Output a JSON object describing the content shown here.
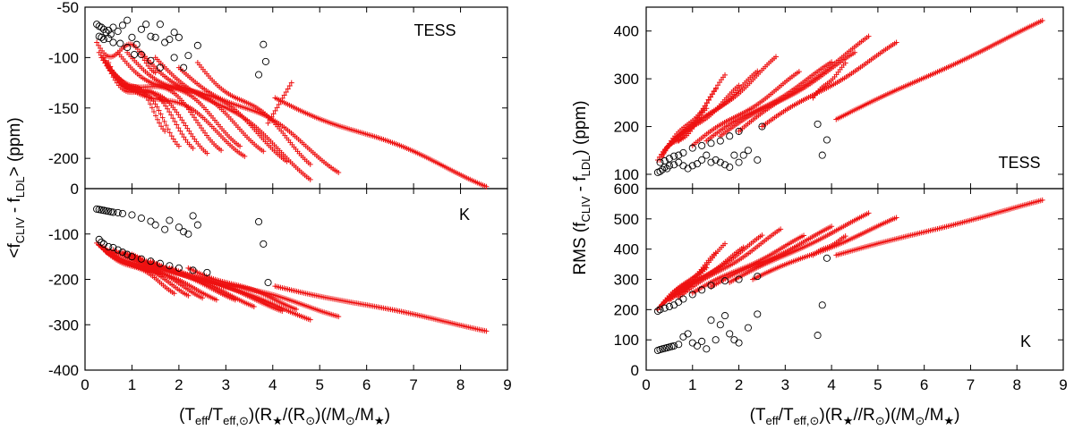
{
  "chart_data": [
    {
      "id": "mean_tess",
      "type": "scatter",
      "panel_label": "TESS",
      "ylabel_parts": [
        "<f",
        "CLIV",
        " - f",
        "LDL",
        "> (ppm)"
      ],
      "xlim": [
        0,
        9
      ],
      "ylim": [
        -230,
        -50
      ],
      "xticks": [],
      "yticks": [
        -200,
        -150,
        -100,
        -50
      ],
      "circles": {
        "x": [
          0.25,
          0.3,
          0.35,
          0.4,
          0.45,
          0.5,
          0.55,
          0.6,
          0.7,
          0.8,
          0.9,
          1.0,
          1.1,
          1.2,
          1.3,
          1.4,
          1.5,
          1.6,
          1.7,
          1.8,
          1.9,
          2.0,
          2.2,
          2.4,
          3.7,
          3.8,
          3.85,
          0.3,
          0.35,
          0.4,
          0.5,
          0.6,
          0.75,
          0.9,
          1.05,
          1.2,
          1.4,
          1.6,
          1.9,
          2.1
        ],
        "y": [
          -67,
          -69,
          -70,
          -72,
          -75,
          -73,
          -77,
          -70,
          -74,
          -68,
          -63,
          -80,
          -87,
          -72,
          -67,
          -79,
          -80,
          -67,
          -85,
          -82,
          -75,
          -80,
          -98,
          -88,
          -117,
          -87,
          -104,
          -79,
          -80,
          -82,
          -81,
          -85,
          -86,
          -90,
          -97,
          -97,
          -103,
          -110,
          -100,
          -110
        ]
      },
      "cross_curves": [
        {
          "x0": 0.25,
          "x1": 1.5,
          "y0": -85,
          "y1": -105,
          "w": -10
        },
        {
          "x0": 0.3,
          "x1": 2.9,
          "y0": -95,
          "y1": -180,
          "w": -12
        },
        {
          "x0": 0.35,
          "x1": 2.6,
          "y0": -100,
          "y1": -185,
          "w": -10
        },
        {
          "x0": 0.4,
          "x1": 2.3,
          "y0": -100,
          "y1": -180,
          "w": -10
        },
        {
          "x0": 0.45,
          "x1": 2.0,
          "y0": -105,
          "y1": -178,
          "w": -10
        },
        {
          "x0": 0.5,
          "x1": 1.7,
          "y0": -105,
          "y1": -165,
          "w": -8
        },
        {
          "x0": 0.5,
          "x1": 3.4,
          "y0": -110,
          "y1": -190,
          "w": -8
        },
        {
          "x0": 0.7,
          "x1": 3.3,
          "y0": -95,
          "y1": -180,
          "w": -8
        },
        {
          "x0": 0.9,
          "x1": 3.8,
          "y0": -95,
          "y1": -185,
          "w": -8
        },
        {
          "x0": 1.2,
          "x1": 4.3,
          "y0": -95,
          "y1": -195,
          "w": -8
        },
        {
          "x0": 1.5,
          "x1": 4.8,
          "y0": -100,
          "y1": -215,
          "w": -6
        },
        {
          "x0": 2.0,
          "x1": 5.4,
          "y0": -110,
          "y1": -208,
          "w": -6
        },
        {
          "x0": 2.4,
          "x1": 4.8,
          "y0": -105,
          "y1": -200,
          "w": -6
        },
        {
          "x0": 4.05,
          "x1": 8.55,
          "y0": -140,
          "y1": -225,
          "w": -3
        },
        {
          "x0": 3.9,
          "x1": 4.4,
          "y0": -165,
          "y1": -125,
          "w": 0
        }
      ]
    },
    {
      "id": "mean_k",
      "type": "scatter",
      "panel_label": "K",
      "xlabel_parts": [
        "(T",
        "eff",
        "/T",
        "eff,⊙",
        ")(R",
        "★",
        "/(R",
        "⊙",
        ")(/M",
        "⊙",
        "/M",
        "★",
        ")"
      ],
      "xlim": [
        0,
        9
      ],
      "ylim": [
        -400,
        0
      ],
      "xticks": [
        0,
        1,
        2,
        3,
        4,
        5,
        6,
        7,
        8,
        9
      ],
      "yticks": [
        -400,
        -300,
        -200,
        -100,
        0
      ],
      "circles": {
        "x": [
          0.25,
          0.3,
          0.35,
          0.4,
          0.45,
          0.5,
          0.55,
          0.6,
          0.7,
          0.8,
          1.0,
          1.2,
          1.4,
          1.5,
          1.7,
          1.8,
          2.0,
          2.1,
          2.2,
          2.3,
          2.4,
          3.7,
          3.8,
          3.9,
          0.3,
          0.35,
          0.4,
          0.5,
          0.6,
          0.7,
          0.8,
          0.9,
          1.0,
          1.2,
          1.4,
          1.6,
          1.8,
          2.0,
          2.3,
          2.6
        ],
        "y": [
          -45,
          -46,
          -47,
          -48,
          -49,
          -50,
          -51,
          -52,
          -53,
          -55,
          -58,
          -65,
          -72,
          -80,
          -90,
          -70,
          -85,
          -95,
          -100,
          -60,
          -80,
          -73,
          -122,
          -207,
          -112,
          -118,
          -122,
          -128,
          -130,
          -135,
          -140,
          -145,
          -150,
          -155,
          -160,
          -165,
          -170,
          -175,
          -180,
          -185
        ]
      },
      "cross_curves": [
        {
          "x0": 0.25,
          "x1": 1.6,
          "y0": -120,
          "y1": -180,
          "w": -6
        },
        {
          "x0": 0.3,
          "x1": 2.5,
          "y0": -125,
          "y1": -235,
          "w": -6
        },
        {
          "x0": 0.35,
          "x1": 2.2,
          "y0": -130,
          "y1": -230,
          "w": -6
        },
        {
          "x0": 0.4,
          "x1": 1.9,
          "y0": -135,
          "y1": -225,
          "w": -6
        },
        {
          "x0": 0.45,
          "x1": 2.8,
          "y0": -140,
          "y1": -240,
          "w": -5
        },
        {
          "x0": 0.6,
          "x1": 3.2,
          "y0": -135,
          "y1": -240,
          "w": -5
        },
        {
          "x0": 0.8,
          "x1": 3.6,
          "y0": -140,
          "y1": -255,
          "w": -5
        },
        {
          "x0": 1.0,
          "x1": 4.2,
          "y0": -145,
          "y1": -265,
          "w": -5
        },
        {
          "x0": 1.4,
          "x1": 4.8,
          "y0": -160,
          "y1": -285,
          "w": -4
        },
        {
          "x0": 1.8,
          "x1": 5.4,
          "y0": -175,
          "y1": -278,
          "w": -4
        },
        {
          "x0": 2.2,
          "x1": 4.5,
          "y0": -175,
          "y1": -262,
          "w": -4
        },
        {
          "x0": 4.05,
          "x1": 8.55,
          "y0": -215,
          "y1": -312,
          "w": -2
        }
      ]
    },
    {
      "id": "rms_tess",
      "type": "scatter",
      "panel_label": "TESS",
      "ylabel_parts": [
        "RMS (f",
        "CLIV",
        " - f",
        "LDL",
        ") (ppm)"
      ],
      "xlim": [
        0,
        9
      ],
      "ylim": [
        70,
        450
      ],
      "xticks": [],
      "yticks": [
        100,
        200,
        300,
        400
      ],
      "circles": {
        "x": [
          0.25,
          0.3,
          0.35,
          0.4,
          0.45,
          0.5,
          0.6,
          0.7,
          0.8,
          0.9,
          1.0,
          1.1,
          1.2,
          1.3,
          1.4,
          1.5,
          1.6,
          1.7,
          1.8,
          1.9,
          2.0,
          2.1,
          2.2,
          2.4,
          3.7,
          3.8,
          3.9,
          0.3,
          0.4,
          0.5,
          0.6,
          0.7,
          0.8,
          1.0,
          1.2,
          1.4,
          1.6,
          1.8,
          2.0,
          2.5
        ],
        "y": [
          104,
          106,
          110,
          115,
          112,
          118,
          120,
          125,
          118,
          112,
          118,
          122,
          130,
          140,
          125,
          130,
          125,
          120,
          115,
          140,
          125,
          140,
          150,
          130,
          205,
          140,
          172,
          125,
          128,
          133,
          138,
          140,
          145,
          155,
          160,
          165,
          170,
          180,
          190,
          200
        ]
      },
      "cross_curves": [
        {
          "x0": 0.25,
          "x1": 1.3,
          "y0": 130,
          "y1": 230,
          "w": 8
        },
        {
          "x0": 0.3,
          "x1": 1.5,
          "y0": 130,
          "y1": 270,
          "w": 8
        },
        {
          "x0": 0.35,
          "x1": 1.7,
          "y0": 140,
          "y1": 300,
          "w": 8
        },
        {
          "x0": 0.4,
          "x1": 2.0,
          "y0": 150,
          "y1": 280,
          "w": 6
        },
        {
          "x0": 0.5,
          "x1": 2.4,
          "y0": 160,
          "y1": 310,
          "w": 6
        },
        {
          "x0": 0.7,
          "x1": 2.8,
          "y0": 170,
          "y1": 340,
          "w": 6
        },
        {
          "x0": 1.0,
          "x1": 3.3,
          "y0": 160,
          "y1": 310,
          "w": 5
        },
        {
          "x0": 1.3,
          "x1": 4.0,
          "y0": 170,
          "y1": 330,
          "w": 5
        },
        {
          "x0": 1.6,
          "x1": 4.5,
          "y0": 180,
          "y1": 350,
          "w": 5
        },
        {
          "x0": 2.0,
          "x1": 4.8,
          "y0": 190,
          "y1": 385,
          "w": 4
        },
        {
          "x0": 2.5,
          "x1": 5.4,
          "y0": 200,
          "y1": 372,
          "w": 4
        },
        {
          "x0": 4.1,
          "x1": 8.55,
          "y0": 215,
          "y1": 420,
          "w": 2
        },
        {
          "x0": 3.6,
          "x1": 4.3,
          "y0": 260,
          "y1": 330,
          "w": 3
        }
      ]
    },
    {
      "id": "rms_k",
      "type": "scatter",
      "panel_label": "K",
      "xlabel_parts": [
        "(T",
        "eff",
        "/T",
        "eff,⊙",
        ")(R",
        "★",
        "//R",
        "⊙",
        ")(/M",
        "⊙",
        "/M",
        "★",
        ")"
      ],
      "xlim": [
        0,
        9
      ],
      "ylim": [
        0,
        600
      ],
      "xticks": [
        0,
        1,
        2,
        3,
        4,
        5,
        6,
        7,
        8,
        9
      ],
      "yticks": [
        0,
        100,
        200,
        300,
        400,
        500,
        600
      ],
      "circles": {
        "x": [
          0.25,
          0.3,
          0.35,
          0.4,
          0.45,
          0.5,
          0.55,
          0.6,
          0.7,
          0.8,
          0.9,
          1.0,
          1.1,
          1.2,
          1.3,
          1.4,
          1.5,
          1.6,
          1.7,
          1.8,
          2.0,
          2.2,
          2.4,
          3.7,
          3.8,
          3.9,
          0.25,
          0.3,
          0.4,
          0.5,
          0.6,
          0.7,
          0.8,
          1.0,
          1.2,
          1.4,
          1.7,
          2.0,
          2.4,
          1.9
        ],
        "y": [
          65,
          68,
          70,
          72,
          74,
          76,
          78,
          80,
          85,
          110,
          120,
          90,
          80,
          95,
          70,
          165,
          100,
          150,
          180,
          120,
          90,
          140,
          185,
          115,
          215,
          370,
          195,
          200,
          205,
          210,
          215,
          225,
          235,
          250,
          265,
          280,
          295,
          300,
          310,
          100
        ]
      },
      "cross_curves": [
        {
          "x0": 0.25,
          "x1": 1.3,
          "y0": 200,
          "y1": 330,
          "w": 8
        },
        {
          "x0": 0.3,
          "x1": 1.5,
          "y0": 210,
          "y1": 380,
          "w": 8
        },
        {
          "x0": 0.35,
          "x1": 1.7,
          "y0": 215,
          "y1": 410,
          "w": 8
        },
        {
          "x0": 0.4,
          "x1": 2.1,
          "y0": 225,
          "y1": 400,
          "w": 6
        },
        {
          "x0": 0.5,
          "x1": 2.5,
          "y0": 230,
          "y1": 440,
          "w": 6
        },
        {
          "x0": 0.7,
          "x1": 2.9,
          "y0": 240,
          "y1": 460,
          "w": 6
        },
        {
          "x0": 1.0,
          "x1": 3.4,
          "y0": 255,
          "y1": 440,
          "w": 5
        },
        {
          "x0": 1.4,
          "x1": 4.0,
          "y0": 275,
          "y1": 470,
          "w": 5
        },
        {
          "x0": 1.8,
          "x1": 4.8,
          "y0": 290,
          "y1": 515,
          "w": 4
        },
        {
          "x0": 2.3,
          "x1": 5.4,
          "y0": 300,
          "y1": 500,
          "w": 4
        },
        {
          "x0": 4.1,
          "x1": 8.55,
          "y0": 380,
          "y1": 560,
          "w": 2
        },
        {
          "x0": 3.6,
          "x1": 4.3,
          "y0": 380,
          "y1": 440,
          "w": 3
        }
      ]
    }
  ]
}
